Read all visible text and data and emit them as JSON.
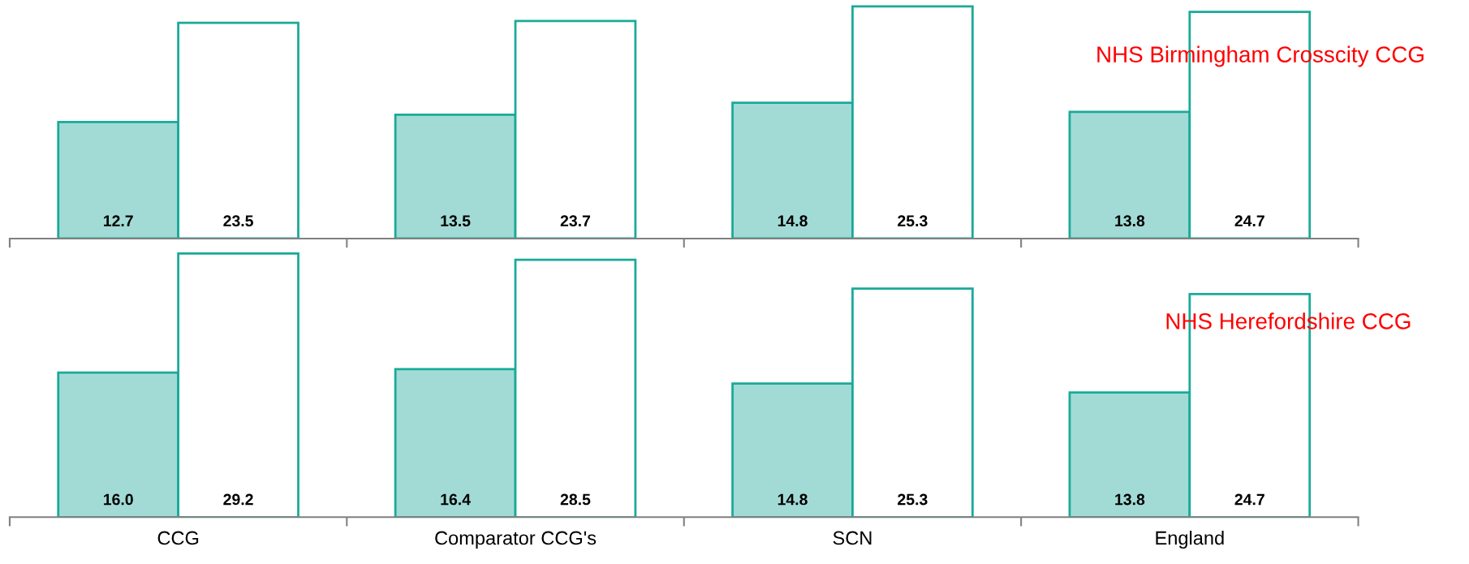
{
  "chart_data": [
    {
      "type": "bar",
      "categories": [
        null,
        null,
        null,
        null
      ],
      "tick_labels": false,
      "annotations": [
        "NHS Birmingham Crosscity CCG"
      ],
      "series": [
        {
          "color": "#a2dbd6",
          "values": [
            12.7,
            13.5,
            14.8,
            13.8
          ],
          "value_labels": [
            "12.7",
            "13.5",
            "14.8",
            "13.8"
          ]
        },
        {
          "color": "#ffffff",
          "values": [
            23.5,
            23.7,
            25.3,
            24.7
          ],
          "value_labels": [
            "23.5",
            "23.7",
            "25.3",
            "24.7"
          ]
        }
      ]
    },
    {
      "type": "bar",
      "categories": [
        "CCG",
        "Comparator CCG's",
        "SCN",
        "England"
      ],
      "tick_labels": "x",
      "annotations": [
        "NHS Herefordshire CCG"
      ],
      "series": [
        {
          "color": "#a2dbd6",
          "values": [
            16.0,
            16.4,
            14.8,
            13.8
          ],
          "value_labels": [
            "16.0",
            "16.4",
            "14.8",
            "13.8"
          ]
        },
        {
          "color": "#ffffff",
          "values": [
            29.2,
            28.5,
            25.3,
            24.7
          ],
          "value_labels": [
            "29.2",
            "28.5",
            "25.3",
            "24.7"
          ]
        }
      ]
    }
  ]
}
